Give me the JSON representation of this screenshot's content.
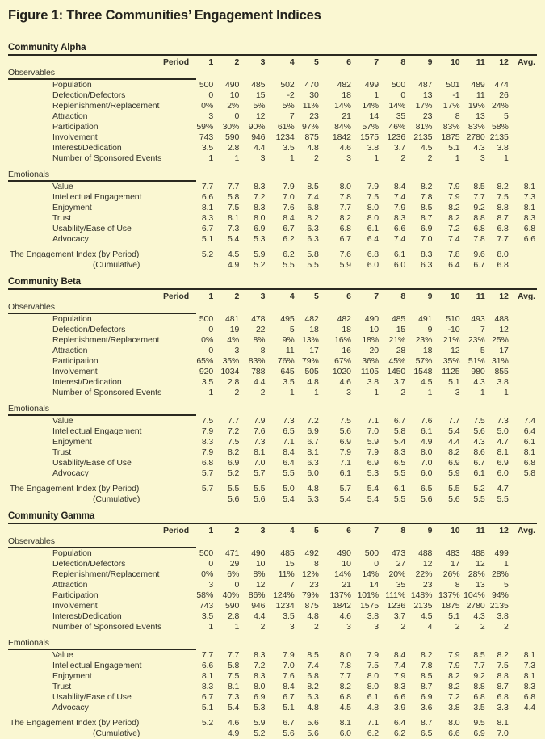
{
  "title": "Figure 1: Three Communities’ Engagement Indices",
  "colors": {
    "background": "#FAF7D2",
    "text": "#33322A",
    "rule": "#2A291F"
  },
  "table_meta": {
    "period_label": "Period",
    "period_columns": [
      "1",
      "2",
      "3",
      "4",
      "5",
      "6",
      "7",
      "8",
      "9",
      "10",
      "11",
      "12"
    ],
    "avg_label": "Avg.",
    "observables_label": "Observables",
    "emotionals_label": "Emotionals",
    "engagement_index_label": "The Engagement Index (by Period)",
    "cumulative_label": "(Cumulative)"
  },
  "communities": [
    {
      "name": "Community Alpha",
      "observables": [
        {
          "label": "Population",
          "values": [
            "500",
            "490",
            "485",
            "502",
            "470",
            "482",
            "499",
            "500",
            "487",
            "501",
            "489",
            "474"
          ],
          "avg": ""
        },
        {
          "label": "Defection/Defectors",
          "values": [
            "0",
            "10",
            "15",
            "-2",
            "30",
            "18",
            "1",
            "0",
            "13",
            "-1",
            "11",
            "26"
          ],
          "avg": ""
        },
        {
          "label": "Replenishment/Replacement",
          "values": [
            "0%",
            "2%",
            "5%",
            "5%",
            "11%",
            "14%",
            "14%",
            "14%",
            "17%",
            "17%",
            "19%",
            "24%"
          ],
          "avg": ""
        },
        {
          "label": "Attraction",
          "values": [
            "3",
            "0",
            "12",
            "7",
            "23",
            "21",
            "14",
            "35",
            "23",
            "8",
            "13",
            "5"
          ],
          "avg": ""
        },
        {
          "label": "Participation",
          "values": [
            "59%",
            "30%",
            "90%",
            "61%",
            "97%",
            "84%",
            "57%",
            "46%",
            "81%",
            "83%",
            "83%",
            "58%"
          ],
          "avg": ""
        },
        {
          "label": "Involvement",
          "values": [
            "743",
            "590",
            "946",
            "1234",
            "875",
            "1842",
            "1575",
            "1236",
            "2135",
            "1875",
            "2780",
            "2135"
          ],
          "avg": ""
        },
        {
          "label": "Interest/Dedication",
          "values": [
            "3.5",
            "2.8",
            "4.4",
            "3.5",
            "4.8",
            "4.6",
            "3.8",
            "3.7",
            "4.5",
            "5.1",
            "4.3",
            "3.8"
          ],
          "avg": ""
        },
        {
          "label": "Number of Sponsored Events",
          "values": [
            "1",
            "1",
            "3",
            "1",
            "2",
            "3",
            "1",
            "2",
            "2",
            "1",
            "3",
            "1"
          ],
          "avg": ""
        }
      ],
      "emotionals": [
        {
          "label": "Value",
          "values": [
            "7.7",
            "7.7",
            "8.3",
            "7.9",
            "8.5",
            "8.0",
            "7.9",
            "8.4",
            "8.2",
            "7.9",
            "8.5",
            "8.2"
          ],
          "avg": "8.1"
        },
        {
          "label": "Intellectual Engagement",
          "values": [
            "6.6",
            "5.8",
            "7.2",
            "7.0",
            "7.4",
            "7.8",
            "7.5",
            "7.4",
            "7.8",
            "7.9",
            "7.7",
            "7.5"
          ],
          "avg": "7.3"
        },
        {
          "label": "Enjoyment",
          "values": [
            "8.1",
            "7.5",
            "8.3",
            "7.6",
            "6.8",
            "7.7",
            "8.0",
            "7.9",
            "8.5",
            "8.2",
            "9.2",
            "8.8"
          ],
          "avg": "8.1"
        },
        {
          "label": "Trust",
          "values": [
            "8.3",
            "8.1",
            "8.0",
            "8.4",
            "8.2",
            "8.2",
            "8.0",
            "8.3",
            "8.7",
            "8.2",
            "8.8",
            "8.7"
          ],
          "avg": "8.3"
        },
        {
          "label": "Usability/Ease of Use",
          "values": [
            "6.7",
            "7.3",
            "6.9",
            "6.7",
            "6.3",
            "6.8",
            "6.1",
            "6.6",
            "6.9",
            "7.2",
            "6.8",
            "6.8"
          ],
          "avg": "6.8"
        },
        {
          "label": "Advocacy",
          "values": [
            "5.1",
            "5.4",
            "5.3",
            "6.2",
            "6.3",
            "6.7",
            "6.4",
            "7.4",
            "7.0",
            "7.4",
            "7.8",
            "7.7"
          ],
          "avg": "6.6"
        }
      ],
      "engagement_index": {
        "values": [
          "5.2",
          "4.5",
          "5.9",
          "6.2",
          "5.8",
          "7.6",
          "6.8",
          "6.1",
          "8.3",
          "7.8",
          "9.6",
          "8.0"
        ],
        "avg": ""
      },
      "cumulative": {
        "values": [
          "",
          "4.9",
          "5.2",
          "5.5",
          "5.5",
          "5.9",
          "6.0",
          "6.0",
          "6.3",
          "6.4",
          "6.7",
          "6.8"
        ],
        "avg": ""
      }
    },
    {
      "name": "Community Beta",
      "observables": [
        {
          "label": "Population",
          "values": [
            "500",
            "481",
            "478",
            "495",
            "482",
            "482",
            "490",
            "485",
            "491",
            "510",
            "493",
            "488"
          ],
          "avg": ""
        },
        {
          "label": "Defection/Defectors",
          "values": [
            "0",
            "19",
            "22",
            "5",
            "18",
            "18",
            "10",
            "15",
            "9",
            "-10",
            "7",
            "12"
          ],
          "avg": ""
        },
        {
          "label": "Replenishment/Replacement",
          "values": [
            "0%",
            "4%",
            "8%",
            "9%",
            "13%",
            "16%",
            "18%",
            "21%",
            "23%",
            "21%",
            "23%",
            "25%"
          ],
          "avg": ""
        },
        {
          "label": "Attraction",
          "values": [
            "0",
            "3",
            "8",
            "11",
            "17",
            "16",
            "20",
            "28",
            "18",
            "12",
            "5",
            "17"
          ],
          "avg": ""
        },
        {
          "label": "Participation",
          "values": [
            "65%",
            "35%",
            "83%",
            "76%",
            "79%",
            "67%",
            "36%",
            "45%",
            "57%",
            "35%",
            "51%",
            "31%"
          ],
          "avg": ""
        },
        {
          "label": "Involvement",
          "values": [
            "920",
            "1034",
            "788",
            "645",
            "505",
            "1020",
            "1105",
            "1450",
            "1548",
            "1125",
            "980",
            "855"
          ],
          "avg": ""
        },
        {
          "label": "Interest/Dedication",
          "values": [
            "3.5",
            "2.8",
            "4.4",
            "3.5",
            "4.8",
            "4.6",
            "3.8",
            "3.7",
            "4.5",
            "5.1",
            "4.3",
            "3.8"
          ],
          "avg": ""
        },
        {
          "label": "Number of Sponsored Events",
          "values": [
            "1",
            "2",
            "2",
            "1",
            "1",
            "3",
            "1",
            "2",
            "1",
            "3",
            "1",
            "1"
          ],
          "avg": ""
        }
      ],
      "emotionals": [
        {
          "label": "Value",
          "values": [
            "7.5",
            "7.7",
            "7.9",
            "7.3",
            "7.2",
            "7.5",
            "7.1",
            "6.7",
            "7.6",
            "7.7",
            "7.5",
            "7.3"
          ],
          "avg": "7.4"
        },
        {
          "label": "Intellectual Engagement",
          "values": [
            "7.9",
            "7.2",
            "7.6",
            "6.5",
            "6.9",
            "5.6",
            "7.0",
            "5.8",
            "6.1",
            "5.4",
            "5.6",
            "5.0"
          ],
          "avg": "6.4"
        },
        {
          "label": "Enjoyment",
          "values": [
            "8.3",
            "7.5",
            "7.3",
            "7.1",
            "6.7",
            "6.9",
            "5.9",
            "5.4",
            "4.9",
            "4.4",
            "4.3",
            "4.7"
          ],
          "avg": "6.1"
        },
        {
          "label": "Trust",
          "values": [
            "7.9",
            "8.2",
            "8.1",
            "8.4",
            "8.1",
            "7.9",
            "7.9",
            "8.3",
            "8.0",
            "8.2",
            "8.6",
            "8.1"
          ],
          "avg": "8.1"
        },
        {
          "label": "Usability/Ease of Use",
          "values": [
            "6.8",
            "6.9",
            "7.0",
            "6.4",
            "6.3",
            "7.1",
            "6.9",
            "6.5",
            "7.0",
            "6.9",
            "6.7",
            "6.9"
          ],
          "avg": "6.8"
        },
        {
          "label": "Advocacy",
          "values": [
            "5.7",
            "5.2",
            "5.7",
            "5.5",
            "6.0",
            "6.1",
            "5.3",
            "5.5",
            "6.0",
            "5.9",
            "6.1",
            "6.0"
          ],
          "avg": "5.8"
        }
      ],
      "engagement_index": {
        "values": [
          "5.7",
          "5.5",
          "5.5",
          "5.0",
          "4.8",
          "5.7",
          "5.4",
          "6.1",
          "6.5",
          "5.5",
          "5.2",
          "4.7"
        ],
        "avg": ""
      },
      "cumulative": {
        "values": [
          "",
          "5.6",
          "5.6",
          "5.4",
          "5.3",
          "5.4",
          "5.4",
          "5.5",
          "5.6",
          "5.6",
          "5.5",
          "5.5"
        ],
        "avg": ""
      }
    },
    {
      "name": "Community Gamma",
      "observables": [
        {
          "label": "Population",
          "values": [
            "500",
            "471",
            "490",
            "485",
            "492",
            "490",
            "500",
            "473",
            "488",
            "483",
            "488",
            "499"
          ],
          "avg": ""
        },
        {
          "label": "Defection/Defectors",
          "values": [
            "0",
            "29",
            "10",
            "15",
            "8",
            "10",
            "0",
            "27",
            "12",
            "17",
            "12",
            "1"
          ],
          "avg": ""
        },
        {
          "label": "Replenishment/Replacement",
          "values": [
            "0%",
            "6%",
            "8%",
            "11%",
            "12%",
            "14%",
            "14%",
            "20%",
            "22%",
            "26%",
            "28%",
            "28%"
          ],
          "avg": ""
        },
        {
          "label": "Attraction",
          "values": [
            "3",
            "0",
            "12",
            "7",
            "23",
            "21",
            "14",
            "35",
            "23",
            "8",
            "13",
            "5"
          ],
          "avg": ""
        },
        {
          "label": "Participation",
          "values": [
            "58%",
            "40%",
            "86%",
            "124%",
            "79%",
            "137%",
            "101%",
            "111%",
            "148%",
            "137%",
            "104%",
            "94%"
          ],
          "avg": ""
        },
        {
          "label": "Involvement",
          "values": [
            "743",
            "590",
            "946",
            "1234",
            "875",
            "1842",
            "1575",
            "1236",
            "2135",
            "1875",
            "2780",
            "2135"
          ],
          "avg": ""
        },
        {
          "label": "Interest/Dedication",
          "values": [
            "3.5",
            "2.8",
            "4.4",
            "3.5",
            "4.8",
            "4.6",
            "3.8",
            "3.7",
            "4.5",
            "5.1",
            "4.3",
            "3.8"
          ],
          "avg": ""
        },
        {
          "label": "Number of Sponsored Events",
          "values": [
            "1",
            "1",
            "2",
            "3",
            "2",
            "3",
            "3",
            "2",
            "4",
            "2",
            "2",
            "2"
          ],
          "avg": ""
        }
      ],
      "emotionals": [
        {
          "label": "Value",
          "values": [
            "7.7",
            "7.7",
            "8.3",
            "7.9",
            "8.5",
            "8.0",
            "7.9",
            "8.4",
            "8.2",
            "7.9",
            "8.5",
            "8.2"
          ],
          "avg": "8.1"
        },
        {
          "label": "Intellectual Engagement",
          "values": [
            "6.6",
            "5.8",
            "7.2",
            "7.0",
            "7.4",
            "7.8",
            "7.5",
            "7.4",
            "7.8",
            "7.9",
            "7.7",
            "7.5"
          ],
          "avg": "7.3"
        },
        {
          "label": "Enjoyment",
          "values": [
            "8.1",
            "7.5",
            "8.3",
            "7.6",
            "6.8",
            "7.7",
            "8.0",
            "7.9",
            "8.5",
            "8.2",
            "9.2",
            "8.8"
          ],
          "avg": "8.1"
        },
        {
          "label": "Trust",
          "values": [
            "8.3",
            "8.1",
            "8.0",
            "8.4",
            "8.2",
            "8.2",
            "8.0",
            "8.3",
            "8.7",
            "8.2",
            "8.8",
            "8.7"
          ],
          "avg": "8.3"
        },
        {
          "label": "Usability/Ease of Use",
          "values": [
            "6.7",
            "7.3",
            "6.9",
            "6.7",
            "6.3",
            "6.8",
            "6.1",
            "6.6",
            "6.9",
            "7.2",
            "6.8",
            "6.8"
          ],
          "avg": "6.8"
        },
        {
          "label": "Advocacy",
          "values": [
            "5.1",
            "5.4",
            "5.3",
            "5.1",
            "4.8",
            "4.5",
            "4.8",
            "3.9",
            "3.6",
            "3.8",
            "3.5",
            "3.3"
          ],
          "avg": "4.4"
        }
      ],
      "engagement_index": {
        "values": [
          "5.2",
          "4.6",
          "5.9",
          "6.7",
          "5.6",
          "8.1",
          "7.1",
          "6.4",
          "8.7",
          "8.0",
          "9.5",
          "8.1"
        ],
        "avg": ""
      },
      "cumulative": {
        "values": [
          "",
          "4.9",
          "5.2",
          "5.6",
          "5.6",
          "6.0",
          "6.2",
          "6.2",
          "6.5",
          "6.6",
          "6.9",
          "7.0"
        ],
        "avg": ""
      }
    }
  ]
}
